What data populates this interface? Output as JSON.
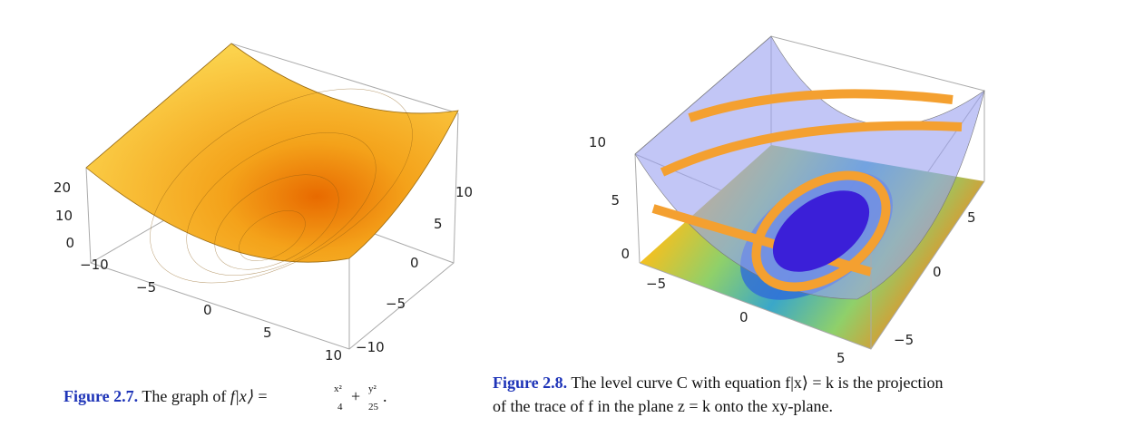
{
  "figures": [
    {
      "ticks": {
        "z": [
          "20",
          "10",
          "0"
        ],
        "x": [
          "−10",
          "−5",
          "0",
          "5",
          "10"
        ],
        "y": [
          "10",
          "5",
          "0",
          "−5",
          "−10"
        ]
      },
      "caption": {
        "label": "Figure 2.7.",
        "text": "The graph of",
        "formula": "f|x⟩ =",
        "frac1": [
          "x²",
          "4"
        ],
        "plus": "+",
        "frac2": [
          "y²",
          "25"
        ],
        "end": "."
      }
    },
    {
      "ticks": {
        "z": [
          "10",
          "5",
          "0"
        ],
        "x": [
          "−5",
          "0",
          "5"
        ],
        "y": [
          "5",
          "0",
          "−5"
        ]
      },
      "caption": {
        "label": "Figure 2.8.",
        "lines": [
          "The level curve C with equation f|x⟩ = k is the projection",
          "of the trace of f in the plane z = k onto the xy-plane."
        ]
      }
    }
  ]
}
